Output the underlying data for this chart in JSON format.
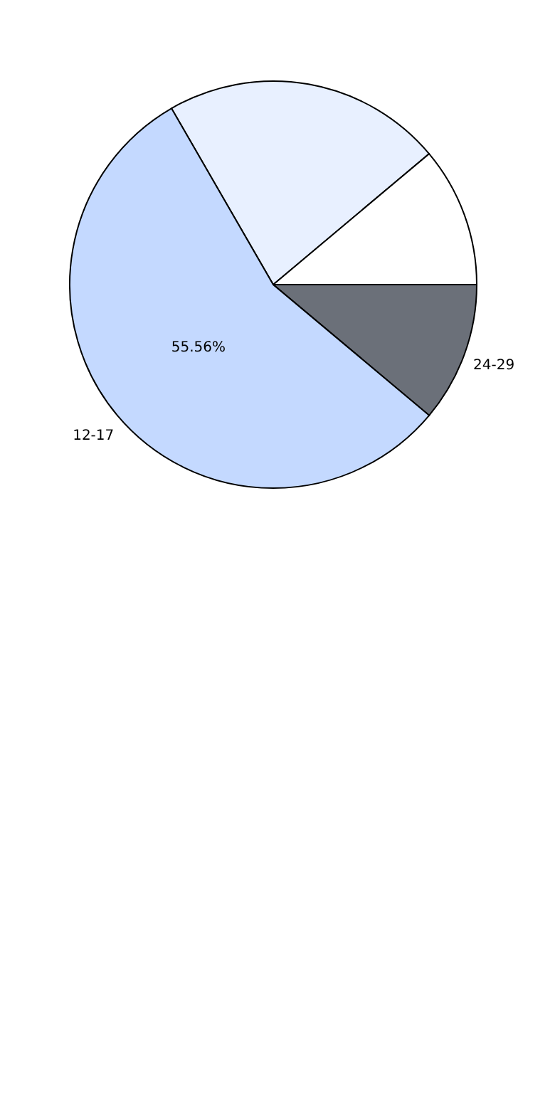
{
  "chart_data": {
    "type": "pie",
    "categories": [
      null,
      null,
      "24-29",
      "12-17"
    ],
    "values": [
      22.22,
      11.11,
      11.11,
      55.56
    ],
    "colors": [
      "#e8f0ff",
      "#ffffff",
      "#6b7079",
      "#c4d9ff"
    ],
    "value_labels": [
      null,
      null,
      null,
      "55.56%"
    ]
  }
}
